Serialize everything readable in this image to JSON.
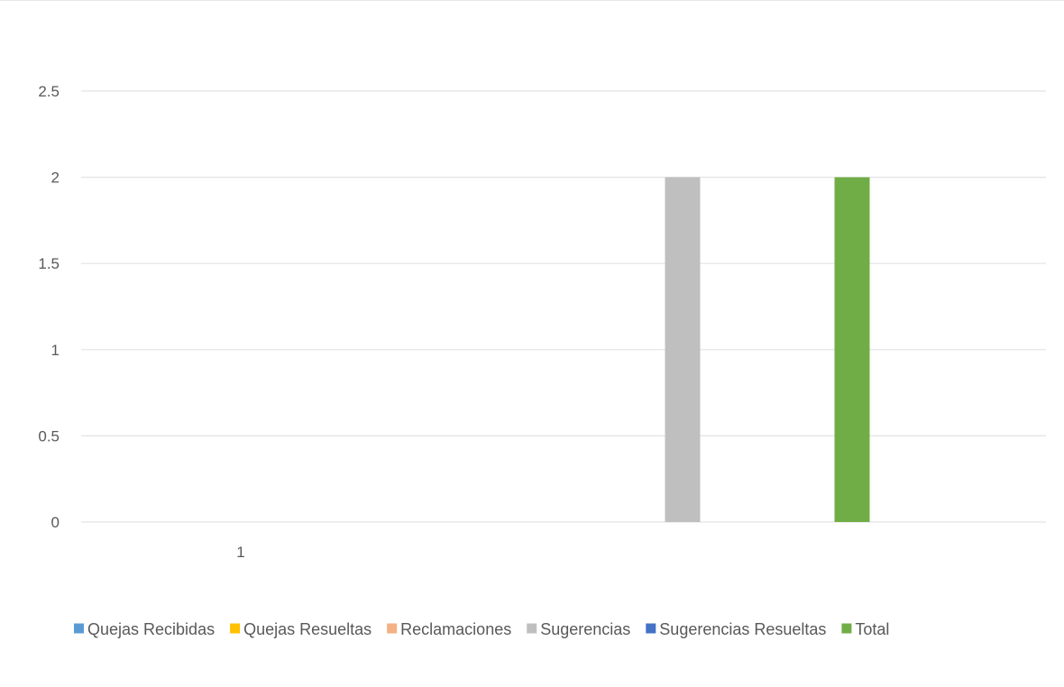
{
  "chart_data": {
    "type": "bar",
    "categories": [
      "1"
    ],
    "series": [
      {
        "name": "Quejas Recibidas",
        "values": [
          0
        ],
        "color": "#5b9bd5"
      },
      {
        "name": "Quejas Resueltas",
        "values": [
          0
        ],
        "color": "#ffc000"
      },
      {
        "name": "Reclamaciones",
        "values": [
          0
        ],
        "color": "#f4b183"
      },
      {
        "name": "Sugerencias",
        "values": [
          2
        ],
        "color": "#bfbfbf"
      },
      {
        "name": "Sugerencias Resueltas",
        "values": [
          0
        ],
        "color": "#4472c4"
      },
      {
        "name": "Total",
        "values": [
          2
        ],
        "color": "#70ad47"
      }
    ],
    "y_ticks": [
      "0",
      "0.5",
      "1",
      "1.5",
      "2",
      "2.5"
    ],
    "ylim": [
      0,
      2.5
    ],
    "grid": true,
    "legend": "bottom",
    "title": "",
    "xlabel": "",
    "ylabel": ""
  }
}
